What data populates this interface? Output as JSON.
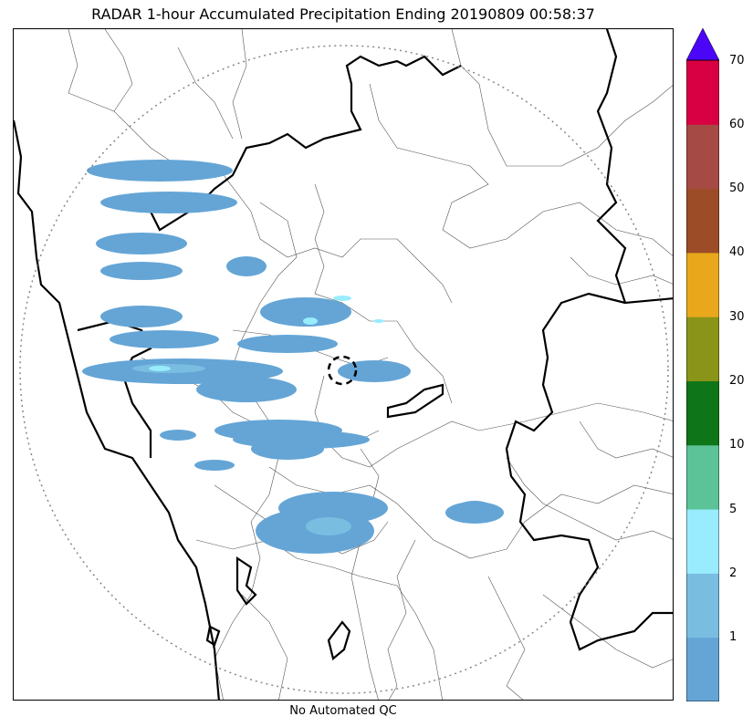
{
  "title": "RADAR 1-hour Accumulated Precipitation Ending 20190809 00:58:37",
  "footer": "No Automated QC",
  "colorbar": {
    "ticks": [
      {
        "label": "1",
        "level": 1
      },
      {
        "label": "2",
        "level": 2
      },
      {
        "label": "5",
        "level": 3
      },
      {
        "label": "10",
        "level": 4
      },
      {
        "label": "20",
        "level": 5
      },
      {
        "label": "30",
        "level": 6
      },
      {
        "label": "40",
        "level": 7
      },
      {
        "label": "50",
        "level": 8
      },
      {
        "label": "60",
        "level": 9
      },
      {
        "label": "70",
        "level": 10
      }
    ],
    "colors": [
      "#64a5d6",
      "#79bde1",
      "#98ecfd",
      "#5cc398",
      "#0e7618",
      "#8a9419",
      "#e9a81b",
      "#9c4c26",
      "#a64a45",
      "#d80042"
    ],
    "extend_color": "#4b06f8"
  },
  "map": {
    "range_ring": "dotted",
    "radar_site_marker": "dashed-circle",
    "rain_color": "#64a5d6",
    "rain_color_light": "#79bde1",
    "rain_color_heavy": "#98ecfd"
  }
}
